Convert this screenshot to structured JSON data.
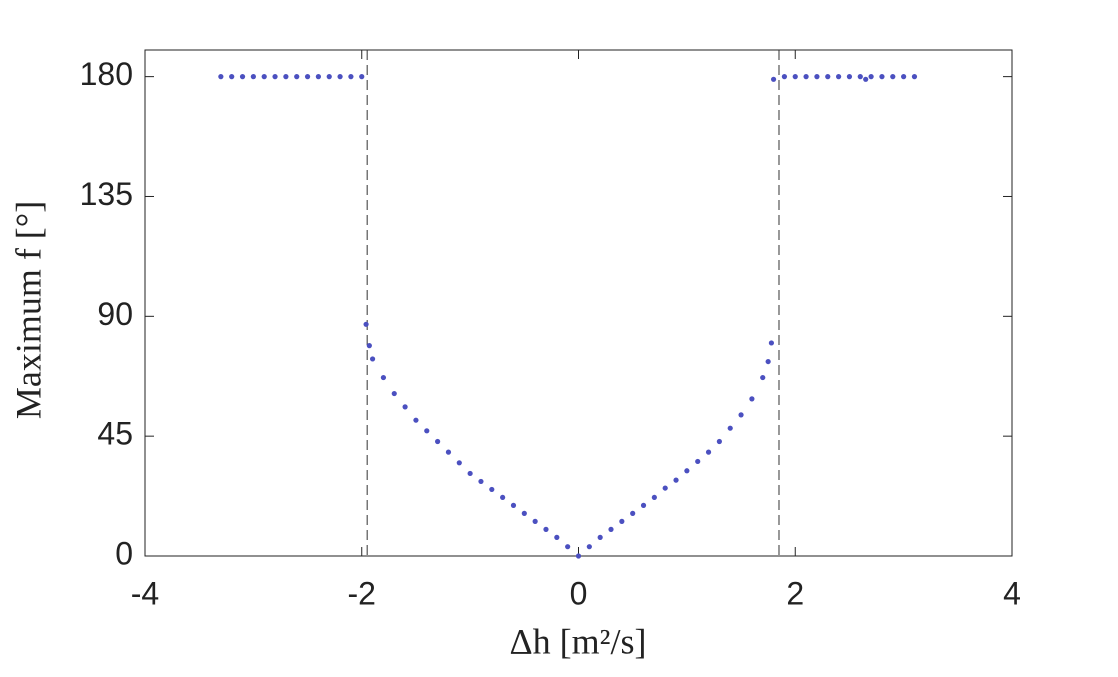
{
  "chart_data": {
    "type": "scatter",
    "xlabel": "Δh [m²/s]",
    "ylabel": "Maximum f [°]",
    "xlim": [
      -4,
      4
    ],
    "ylim": [
      0,
      190
    ],
    "xticks": [
      -4,
      -2,
      0,
      2,
      4
    ],
    "yticks": [
      0,
      45,
      90,
      135,
      180
    ],
    "vlines": [
      -1.95,
      1.85
    ],
    "series": [
      {
        "color": "#4b50c0",
        "x": [
          -3.3,
          -3.2,
          -3.1,
          -3.0,
          -2.9,
          -2.8,
          -2.7,
          -2.6,
          -2.5,
          -2.4,
          -2.3,
          -2.2,
          -2.1,
          -2.0,
          -1.96,
          -1.93,
          -1.9,
          -1.8,
          -1.7,
          -1.6,
          -1.5,
          -1.4,
          -1.3,
          -1.2,
          -1.1,
          -1.0,
          -0.9,
          -0.8,
          -0.7,
          -0.6,
          -0.5,
          -0.4,
          -0.3,
          -0.2,
          -0.1,
          0,
          0.1,
          0.2,
          0.3,
          0.4,
          0.5,
          0.6,
          0.7,
          0.8,
          0.9,
          1.0,
          1.1,
          1.2,
          1.3,
          1.4,
          1.5,
          1.6,
          1.7,
          1.75,
          1.78,
          1.8,
          1.9,
          2.0,
          2.1,
          2.2,
          2.3,
          2.4,
          2.5,
          2.6,
          2.65,
          2.7,
          2.8,
          2.9,
          3.0,
          3.1
        ],
        "values": [
          180,
          180,
          180,
          180,
          180,
          180,
          180,
          180,
          180,
          180,
          180,
          180,
          180,
          180,
          87,
          79,
          74,
          67,
          61,
          56,
          51,
          47,
          43,
          39,
          35,
          31,
          28,
          25,
          22,
          19,
          16,
          13,
          10,
          7,
          3.5,
          0,
          3.5,
          7,
          10,
          13,
          16,
          19,
          22,
          25.5,
          28.5,
          32,
          35.5,
          39,
          43,
          48,
          53,
          59,
          67,
          73,
          80,
          179,
          180,
          180,
          180,
          180,
          180,
          180,
          180,
          180,
          179,
          180,
          180,
          180,
          180,
          180
        ]
      }
    ]
  }
}
